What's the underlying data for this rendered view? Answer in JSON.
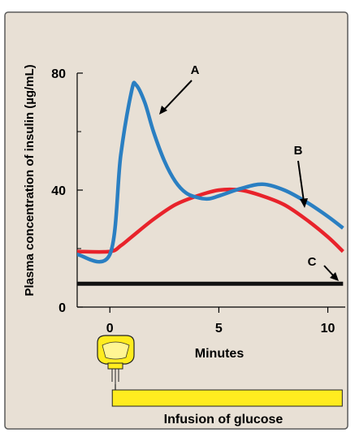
{
  "chart_data": {
    "type": "line",
    "ylabel": "Plasma concentration of insulin (µg/mL)",
    "xlabel": "Minutes",
    "xlim": [
      -1.5,
      10.8
    ],
    "ylim": [
      0,
      80
    ],
    "x_ticks": [
      0,
      5,
      10
    ],
    "x_tick_labels": [
      "0",
      "5",
      "10"
    ],
    "y_ticks": [
      0,
      40,
      80
    ],
    "y_tick_labels": [
      "0",
      "40",
      "80"
    ],
    "grid": false,
    "legend": "none",
    "series": [
      {
        "name": "A",
        "color": "#2a7fc2",
        "points": [
          [
            -1.5,
            18
          ],
          [
            0,
            18
          ],
          [
            0.5,
            52
          ],
          [
            1,
            74
          ],
          [
            1.2,
            76
          ],
          [
            1.6,
            70
          ],
          [
            2,
            60
          ],
          [
            2.5,
            50
          ],
          [
            3,
            43
          ],
          [
            3.5,
            39
          ],
          [
            4,
            37.5
          ],
          [
            4.5,
            37
          ],
          [
            5,
            38
          ],
          [
            6,
            40.5
          ],
          [
            7,
            42
          ],
          [
            8,
            40
          ],
          [
            9,
            36
          ],
          [
            10,
            31
          ],
          [
            10.7,
            27
          ]
        ]
      },
      {
        "name": "B",
        "color": "#e8232b",
        "points": [
          [
            -1.5,
            19
          ],
          [
            0,
            19
          ],
          [
            0.5,
            21
          ],
          [
            1,
            24
          ],
          [
            2,
            30
          ],
          [
            3,
            35
          ],
          [
            4,
            38
          ],
          [
            5,
            40
          ],
          [
            6,
            40
          ],
          [
            7,
            38
          ],
          [
            8,
            35
          ],
          [
            9,
            30
          ],
          [
            10,
            24
          ],
          [
            10.7,
            19
          ]
        ]
      },
      {
        "name": "C",
        "color": "#111111",
        "points": [
          [
            -1.5,
            8
          ],
          [
            10.7,
            8
          ]
        ]
      }
    ],
    "annotations": {
      "A": "A",
      "B": "B",
      "C": "C"
    }
  },
  "infusion": {
    "label": "Infusion of glucose",
    "start_x": 0,
    "end_x": 10.7
  },
  "colors": {
    "background": "#e8e0d5",
    "border": "#5a5a5a",
    "bar_fill": "#ffec1f",
    "bar_stroke": "#222222"
  }
}
